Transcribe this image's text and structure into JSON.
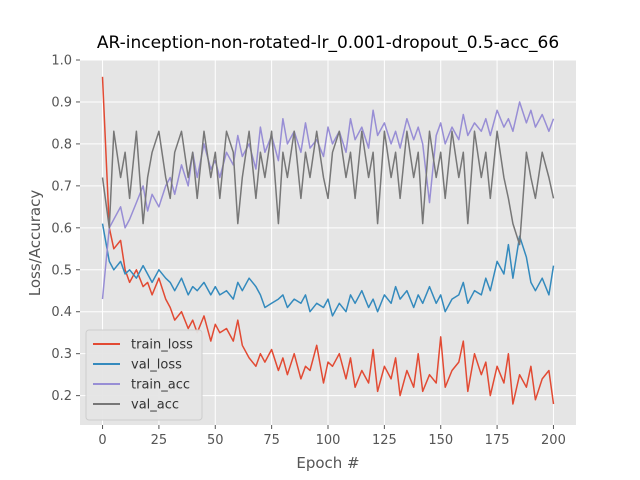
{
  "chart_data": {
    "type": "line",
    "title": "AR-inception-non-rotated-lr_0.001-dropout_0.5-acc_66",
    "xlabel": "Epoch #",
    "ylabel": "Loss/Accuracy",
    "xlim": [
      -10,
      210
    ],
    "ylim": [
      0.13,
      1.0
    ],
    "xticks": [
      0,
      25,
      50,
      75,
      100,
      125,
      150,
      175,
      200
    ],
    "yticks": [
      0.2,
      0.3,
      0.4,
      0.5,
      0.6,
      0.7,
      0.8,
      0.9,
      1.0
    ],
    "ytick_labels": [
      "0.2",
      "0.3",
      "0.4",
      "0.5",
      "0.6",
      "0.7",
      "0.8",
      "0.9",
      "1.0"
    ],
    "grid": true,
    "legend_position": "lower-left",
    "series": [
      {
        "name": "train_loss",
        "color": "#E24A33",
        "x": [
          0,
          3,
          5,
          8,
          10,
          12,
          15,
          18,
          20,
          22,
          25,
          28,
          30,
          32,
          35,
          38,
          40,
          42,
          45,
          48,
          50,
          52,
          55,
          58,
          60,
          62,
          65,
          68,
          70,
          72,
          75,
          78,
          80,
          82,
          85,
          88,
          90,
          92,
          95,
          98,
          100,
          102,
          105,
          108,
          110,
          112,
          115,
          118,
          120,
          122,
          125,
          128,
          130,
          132,
          135,
          138,
          140,
          142,
          145,
          148,
          150,
          152,
          155,
          158,
          160,
          162,
          165,
          168,
          170,
          172,
          175,
          178,
          180,
          182,
          185,
          188,
          190,
          192,
          195,
          198,
          200
        ],
        "y": [
          0.96,
          0.6,
          0.55,
          0.57,
          0.5,
          0.47,
          0.5,
          0.46,
          0.47,
          0.44,
          0.48,
          0.43,
          0.41,
          0.38,
          0.4,
          0.36,
          0.38,
          0.35,
          0.39,
          0.33,
          0.37,
          0.35,
          0.36,
          0.33,
          0.38,
          0.32,
          0.29,
          0.27,
          0.3,
          0.28,
          0.31,
          0.26,
          0.29,
          0.25,
          0.3,
          0.24,
          0.27,
          0.26,
          0.32,
          0.23,
          0.28,
          0.27,
          0.3,
          0.24,
          0.29,
          0.22,
          0.26,
          0.23,
          0.31,
          0.21,
          0.27,
          0.24,
          0.29,
          0.2,
          0.26,
          0.22,
          0.3,
          0.21,
          0.25,
          0.23,
          0.34,
          0.22,
          0.26,
          0.28,
          0.33,
          0.21,
          0.3,
          0.25,
          0.28,
          0.2,
          0.27,
          0.23,
          0.3,
          0.18,
          0.25,
          0.22,
          0.27,
          0.19,
          0.24,
          0.26,
          0.18
        ]
      },
      {
        "name": "val_loss",
        "color": "#348ABD",
        "x": [
          0,
          3,
          5,
          8,
          10,
          12,
          15,
          18,
          20,
          22,
          25,
          28,
          30,
          32,
          35,
          38,
          40,
          42,
          45,
          48,
          50,
          52,
          55,
          58,
          60,
          62,
          65,
          68,
          70,
          72,
          75,
          78,
          80,
          82,
          85,
          88,
          90,
          92,
          95,
          98,
          100,
          102,
          105,
          108,
          110,
          112,
          115,
          118,
          120,
          122,
          125,
          128,
          130,
          132,
          135,
          138,
          140,
          142,
          145,
          148,
          150,
          152,
          155,
          158,
          160,
          162,
          165,
          168,
          170,
          172,
          175,
          178,
          180,
          182,
          185,
          188,
          190,
          192,
          195,
          198,
          200
        ],
        "y": [
          0.61,
          0.52,
          0.5,
          0.52,
          0.49,
          0.5,
          0.48,
          0.51,
          0.49,
          0.47,
          0.5,
          0.48,
          0.47,
          0.45,
          0.48,
          0.44,
          0.46,
          0.45,
          0.47,
          0.44,
          0.46,
          0.44,
          0.45,
          0.43,
          0.47,
          0.45,
          0.48,
          0.46,
          0.44,
          0.41,
          0.42,
          0.43,
          0.44,
          0.41,
          0.43,
          0.42,
          0.44,
          0.4,
          0.42,
          0.41,
          0.43,
          0.39,
          0.42,
          0.4,
          0.44,
          0.42,
          0.45,
          0.41,
          0.43,
          0.4,
          0.44,
          0.42,
          0.46,
          0.43,
          0.45,
          0.41,
          0.44,
          0.42,
          0.46,
          0.42,
          0.44,
          0.4,
          0.43,
          0.44,
          0.47,
          0.42,
          0.45,
          0.44,
          0.48,
          0.45,
          0.52,
          0.49,
          0.56,
          0.48,
          0.58,
          0.53,
          0.47,
          0.45,
          0.48,
          0.44,
          0.51
        ]
      },
      {
        "name": "train_acc",
        "color": "#988ED5",
        "x": [
          0,
          3,
          5,
          8,
          10,
          12,
          15,
          18,
          20,
          22,
          25,
          28,
          30,
          32,
          35,
          38,
          40,
          42,
          45,
          48,
          50,
          52,
          55,
          58,
          60,
          62,
          65,
          68,
          70,
          72,
          75,
          78,
          80,
          82,
          85,
          88,
          90,
          92,
          95,
          98,
          100,
          102,
          105,
          108,
          110,
          112,
          115,
          118,
          120,
          122,
          125,
          128,
          130,
          132,
          135,
          138,
          140,
          142,
          145,
          148,
          150,
          152,
          155,
          158,
          160,
          162,
          165,
          168,
          170,
          172,
          175,
          178,
          180,
          182,
          185,
          188,
          190,
          192,
          195,
          198,
          200
        ],
        "y": [
          0.43,
          0.6,
          0.62,
          0.65,
          0.6,
          0.62,
          0.66,
          0.7,
          0.64,
          0.68,
          0.65,
          0.7,
          0.72,
          0.68,
          0.75,
          0.7,
          0.78,
          0.72,
          0.8,
          0.74,
          0.76,
          0.72,
          0.78,
          0.75,
          0.82,
          0.77,
          0.8,
          0.74,
          0.84,
          0.78,
          0.82,
          0.76,
          0.86,
          0.8,
          0.83,
          0.78,
          0.85,
          0.79,
          0.81,
          0.77,
          0.84,
          0.8,
          0.83,
          0.78,
          0.86,
          0.81,
          0.84,
          0.79,
          0.88,
          0.82,
          0.85,
          0.8,
          0.83,
          0.79,
          0.86,
          0.81,
          0.84,
          0.8,
          0.66,
          0.82,
          0.85,
          0.8,
          0.84,
          0.81,
          0.87,
          0.82,
          0.85,
          0.83,
          0.86,
          0.82,
          0.88,
          0.84,
          0.86,
          0.83,
          0.9,
          0.85,
          0.88,
          0.84,
          0.87,
          0.83,
          0.86
        ]
      },
      {
        "name": "val_acc",
        "color": "#777777",
        "x": [
          0,
          3,
          5,
          8,
          10,
          12,
          15,
          18,
          20,
          22,
          25,
          28,
          30,
          32,
          35,
          38,
          40,
          42,
          45,
          48,
          50,
          52,
          55,
          58,
          60,
          62,
          65,
          68,
          70,
          72,
          75,
          78,
          80,
          82,
          85,
          88,
          90,
          92,
          95,
          98,
          100,
          102,
          105,
          108,
          110,
          112,
          115,
          118,
          120,
          122,
          125,
          128,
          130,
          132,
          135,
          138,
          140,
          142,
          145,
          148,
          150,
          152,
          155,
          158,
          160,
          162,
          165,
          168,
          170,
          172,
          175,
          178,
          180,
          182,
          185,
          188,
          190,
          192,
          195,
          198,
          200
        ],
        "y": [
          0.72,
          0.6,
          0.83,
          0.72,
          0.78,
          0.67,
          0.83,
          0.61,
          0.72,
          0.78,
          0.83,
          0.72,
          0.67,
          0.78,
          0.83,
          0.72,
          0.78,
          0.67,
          0.83,
          0.72,
          0.78,
          0.67,
          0.83,
          0.78,
          0.61,
          0.72,
          0.83,
          0.67,
          0.78,
          0.72,
          0.83,
          0.61,
          0.78,
          0.72,
          0.83,
          0.67,
          0.78,
          0.72,
          0.83,
          0.72,
          0.67,
          0.78,
          0.83,
          0.72,
          0.78,
          0.67,
          0.83,
          0.72,
          0.78,
          0.61,
          0.83,
          0.72,
          0.78,
          0.67,
          0.83,
          0.72,
          0.78,
          0.61,
          0.83,
          0.72,
          0.78,
          0.67,
          0.83,
          0.72,
          0.78,
          0.61,
          0.83,
          0.72,
          0.78,
          0.67,
          0.83,
          0.72,
          0.67,
          0.61,
          0.56,
          0.78,
          0.72,
          0.67,
          0.78,
          0.72,
          0.67
        ]
      }
    ]
  }
}
